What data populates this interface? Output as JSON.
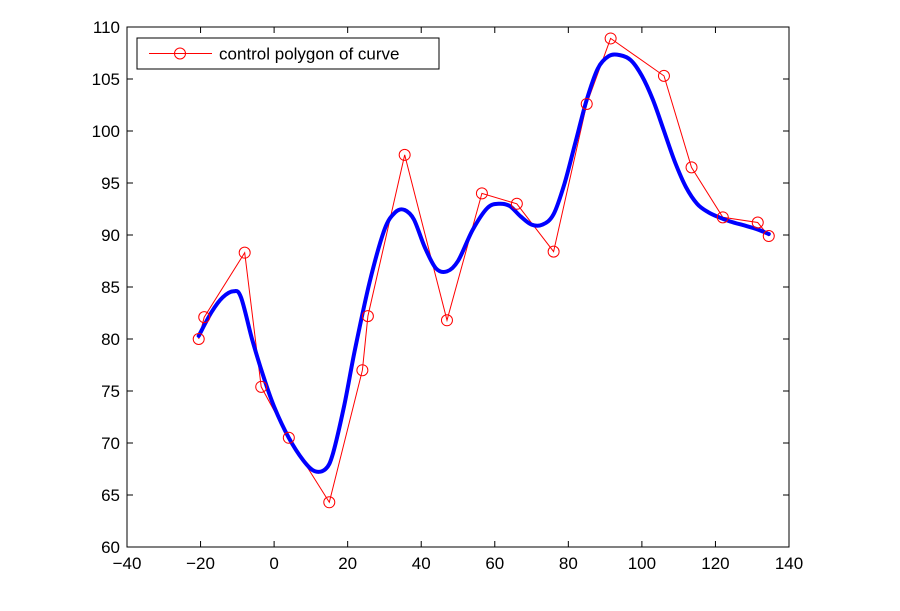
{
  "chart_data": {
    "type": "line",
    "title": "",
    "xlabel": "",
    "ylabel": "",
    "xlim": [
      -40,
      140
    ],
    "ylim": [
      60,
      110
    ],
    "xticks": [
      -40,
      -20,
      0,
      20,
      40,
      60,
      80,
      100,
      120,
      140
    ],
    "yticks": [
      60,
      65,
      70,
      75,
      80,
      85,
      90,
      95,
      100,
      105,
      110
    ],
    "xtick_labels": [
      "−40",
      "−20",
      "0",
      "20",
      "40",
      "60",
      "80",
      "100",
      "120",
      "140"
    ],
    "ytick_labels": [
      "60",
      "65",
      "70",
      "75",
      "80",
      "85",
      "90",
      "95",
      "100",
      "105",
      "110"
    ],
    "grid": false,
    "legend": {
      "position": "top-left",
      "entries": [
        "control polygon of curve"
      ]
    },
    "series": [
      {
        "name": "control polygon of curve",
        "style": "line-with-circle-markers",
        "color": "#ff0000",
        "x": [
          -20.5,
          -19,
          -8,
          -3.5,
          4,
          15,
          24,
          25.5,
          35.5,
          47,
          56.5,
          66,
          76,
          85,
          91.5,
          106,
          113.5,
          122,
          131.5,
          134.5
        ],
        "y": [
          80.0,
          82.1,
          88.3,
          75.4,
          70.5,
          64.3,
          77.0,
          82.2,
          97.7,
          81.8,
          94.0,
          93.0,
          88.4,
          102.6,
          108.9,
          105.3,
          96.5,
          91.7,
          91.2,
          89.9
        ]
      },
      {
        "style": "thick-line",
        "color": "#0000ff",
        "x": [
          -20.5,
          -17,
          -14,
          -11,
          -9,
          -6,
          -3,
          0,
          4,
          8,
          11,
          14,
          16,
          19,
          22,
          26,
          30,
          33,
          35.5,
          38,
          41,
          44,
          47,
          50,
          54,
          58,
          61,
          64,
          67,
          70,
          73,
          76,
          79,
          82,
          85,
          88,
          91,
          94,
          97,
          100,
          103,
          106,
          109,
          112,
          115,
          118,
          121,
          124,
          128,
          131,
          134.5
        ],
        "y": [
          80.3,
          82.6,
          84.0,
          84.6,
          84.0,
          80.0,
          76.5,
          73.5,
          70.5,
          68.3,
          67.3,
          67.5,
          69.0,
          73.5,
          79.0,
          85.5,
          90.5,
          92.2,
          92.4,
          91.5,
          88.8,
          86.8,
          86.5,
          87.5,
          90.5,
          92.6,
          93.0,
          92.8,
          91.8,
          91.0,
          91.0,
          92.0,
          95.0,
          99.0,
          103.0,
          106.0,
          107.2,
          107.3,
          106.8,
          105.3,
          103.0,
          100.0,
          97.0,
          94.6,
          93.0,
          92.2,
          91.7,
          91.3,
          90.9,
          90.6,
          90.1
        ]
      }
    ]
  }
}
